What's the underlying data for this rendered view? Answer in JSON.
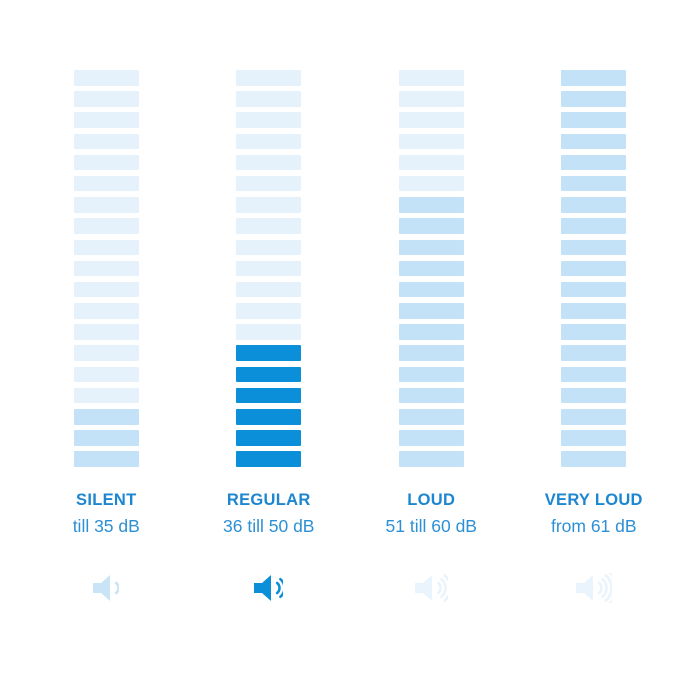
{
  "page": {
    "background": "#ffffff",
    "description": "Noise level infographic with four vertical bar meters"
  },
  "colors": {
    "bar_faint": "#e6f2fb",
    "bar_medium": "#c3e1f7",
    "bar_active": "#0a8fd8",
    "title_text": "#1d86d0",
    "range_text": "#2d90d5",
    "icon_medium": "#c9e4f6",
    "icon_active": "#0a8fd8",
    "icon_faint": "#e9f4fd"
  },
  "meter": {
    "bars_per_column": 19
  },
  "columns": [
    {
      "id": "silent",
      "title": "SILENT",
      "range": "till 35 dB",
      "bars_total": 19,
      "bars_filled": 3,
      "fill_style": "medium",
      "speaker_waves": 1,
      "icon_style": "medium",
      "selected": false
    },
    {
      "id": "regular",
      "title": "REGULAR",
      "range": "36 till 50 dB",
      "bars_total": 19,
      "bars_filled": 6,
      "fill_style": "active",
      "speaker_waves": 2,
      "icon_style": "active",
      "selected": true
    },
    {
      "id": "loud",
      "title": "LOUD",
      "range": "51 till 60 dB",
      "bars_total": 19,
      "bars_filled": 13,
      "fill_style": "medium",
      "speaker_waves": 3,
      "icon_style": "faint",
      "selected": false
    },
    {
      "id": "very-loud",
      "title": "VERY LOUD",
      "range": "from 61 dB",
      "bars_total": 19,
      "bars_filled": 19,
      "fill_style": "medium",
      "speaker_waves": 4,
      "icon_style": "faint",
      "selected": false
    }
  ]
}
